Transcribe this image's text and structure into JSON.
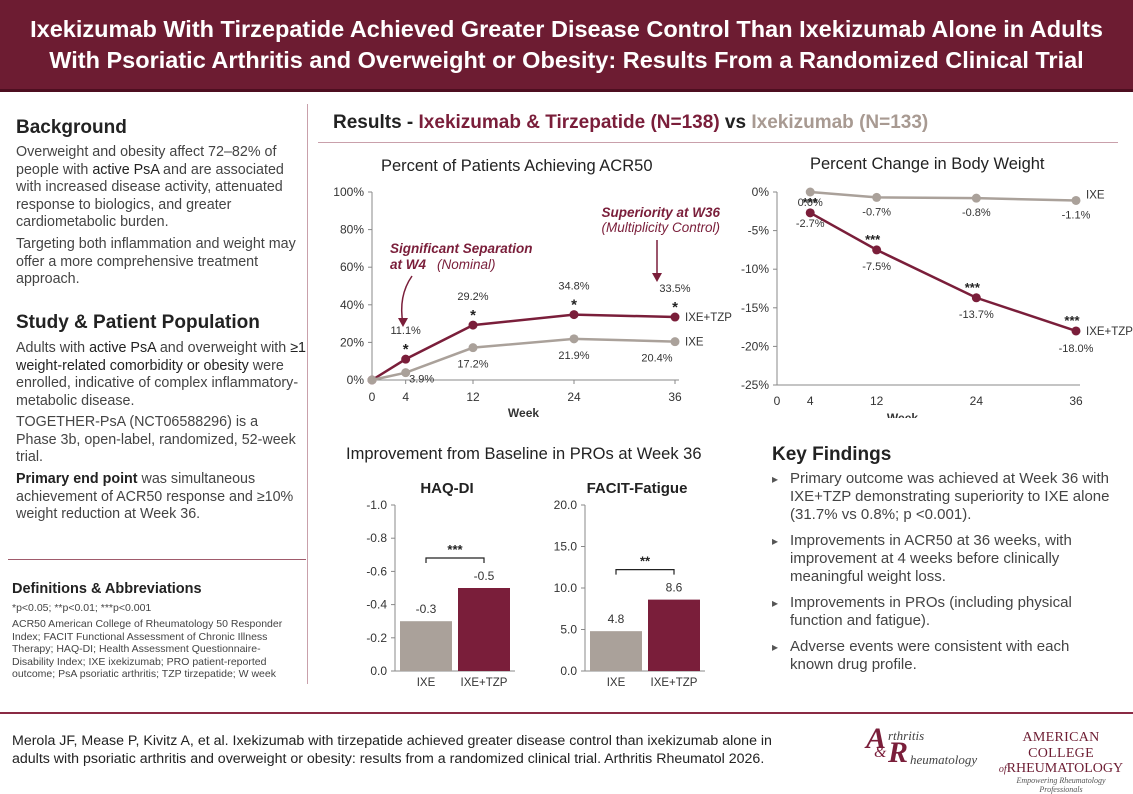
{
  "header": {
    "line1": "Ixekizumab With Tirzepatide Achieved Greater Disease Control Than Ixekizumab Alone in Adults",
    "line2": "With Psoriatic Arthritis and Overweight or Obesity: Results From a Randomized Clinical Trial"
  },
  "background": {
    "heading": "Background",
    "p1_a": "Overweight and obesity affect 72–82% of people with ",
    "p1_bold": "active PsA",
    "p1_b": " and are associated with increased disease activity, attenuated response to biologics, and greater cardiometabolic burden.",
    "p2": "Targeting both inflammation and weight may offer a more comprehensive treatment approach."
  },
  "study": {
    "heading": "Study & Patient Population",
    "p1_a": "Adults with ",
    "p1_b1": "active PsA",
    "p1_c": " and overweight with ",
    "p1_b2": "≥1 weight-related comorbidity or obesity",
    "p1_d": " were enrolled, indicative of complex inflammatory-metabolic disease.",
    "p2": "TOGETHER-PsA (NCT06588296) is a Phase 3b, open-label, randomized, 52-week trial.",
    "p3_bold": "Primary end point",
    "p3_rest": " was simultaneous achievement of ACR50 response and ≥10% weight reduction at Week 36."
  },
  "definitions": {
    "heading": "Definitions & Abbreviations",
    "sig": "*p<0.05; **p<0.01; ***p<0.001",
    "text": "ACR50 American College of Rheumatology 50 Responder Index; FACIT Functional Assessment of Chronic Illness Therapy; HAQ-DI; Health Assessment Questionnaire-Disability Index; IXE ixekizumab; PRO patient-reported outcome; PsA psoriatic arthritis; TZP tirzepatide; W week"
  },
  "results": {
    "label": "Results - ",
    "arm1": "Ixekizumab & Tirzepatide (N=138)",
    "vs": " vs ",
    "arm2": "Ixekizumab (N=133)"
  },
  "colors": {
    "maroon": "#7a1e3a",
    "gray": "#aaa19a"
  },
  "chart_data": [
    {
      "id": "acr50",
      "type": "line",
      "title": "Percent of Patients Achieving ACR50",
      "xlabel": "Week",
      "ylabel": "",
      "x": [
        0,
        4,
        12,
        24,
        36
      ],
      "xticks": [
        "0",
        "4",
        "12",
        "24",
        "36"
      ],
      "yticks": [
        "0%",
        "20%",
        "40%",
        "60%",
        "80%",
        "100%"
      ],
      "ylim": [
        0,
        100
      ],
      "series": [
        {
          "name": "IXE+TZP",
          "values": [
            0,
            11.1,
            29.2,
            34.8,
            33.5
          ],
          "labels": [
            "",
            "11.1%",
            "29.2%",
            "34.8%",
            "33.5%"
          ],
          "sig": [
            "",
            "*",
            "*",
            "*",
            "*"
          ]
        },
        {
          "name": "IXE",
          "values": [
            0,
            3.9,
            17.2,
            21.9,
            20.4
          ],
          "labels": [
            "",
            "3.9%",
            "17.2%",
            "21.9%",
            "20.4%"
          ]
        }
      ],
      "annotations": {
        "sep_bold": "Significant Separation",
        "sep_bold2": "at W4",
        "sep_rest": " (Nominal)",
        "sup_bold": "Superiority at W36",
        "sup_rest": "(Multiplicity Control)"
      }
    },
    {
      "id": "weight",
      "type": "line",
      "title": "Percent Change in Body Weight",
      "xlabel": "Week",
      "x": [
        0,
        4,
        12,
        24,
        36
      ],
      "xticks": [
        "0",
        "4",
        "12",
        "24",
        "36"
      ],
      "yticks": [
        "0%",
        "-5%",
        "-10%",
        "-15%",
        "-20%",
        "-25%"
      ],
      "ylim": [
        -25,
        0
      ],
      "series": [
        {
          "name": "IXE",
          "values": [
            null,
            0.0,
            -0.7,
            -0.8,
            -1.1
          ],
          "labels": [
            "",
            "0.0%",
            "-0.7%",
            "-0.8%",
            "-1.1%"
          ]
        },
        {
          "name": "IXE+TZP",
          "values": [
            null,
            -2.7,
            -7.5,
            -13.7,
            -18.0
          ],
          "labels": [
            "",
            "-2.7%",
            "-7.5%",
            "-13.7%",
            "-18.0%"
          ],
          "sig": [
            "",
            "***",
            "***",
            "***",
            "***"
          ]
        }
      ]
    },
    {
      "id": "haq",
      "type": "bar",
      "title": "HAQ-DI",
      "categories": [
        "IXE",
        "IXE+TZP"
      ],
      "values": [
        -0.3,
        -0.5
      ],
      "labels": [
        "-0.3",
        "-0.5"
      ],
      "yticks": [
        "-1.0",
        "-0.8",
        "-0.6",
        "-0.4",
        "-0.2",
        "0.0"
      ],
      "ylim": [
        -1.0,
        0
      ],
      "sig": "***"
    },
    {
      "id": "facit",
      "type": "bar",
      "title": "FACIT-Fatigue",
      "categories": [
        "IXE",
        "IXE+TZP"
      ],
      "values": [
        4.8,
        8.6
      ],
      "labels": [
        "4.8",
        "8.6"
      ],
      "yticks": [
        "20.0",
        "15.0",
        "10.0",
        "5.0",
        "0.0"
      ],
      "ylim": [
        0,
        20
      ],
      "sig": "**"
    }
  ],
  "pro_title": "Improvement from Baseline in PROs at Week 36",
  "key_findings": {
    "heading": "Key Findings",
    "items": [
      "Primary outcome was achieved at Week 36 with IXE+TZP demonstrating superiority to IXE alone (31.7% vs 0.8%; p <0.001).",
      "Improvements in ACR50 at 36 weeks, with improvement at 4 weeks before clinically meaningful weight loss.",
      "Improvements in PROs (including physical function and fatigue).",
      "Adverse events were consistent with each known drug profile."
    ]
  },
  "footer": {
    "citation": "Merola JF, Mease P, Kivitz A, et al. Ixekizumab with tirzepatide achieved greater disease control than ixekizumab alone in adults with psoriatic arthritis and overweight or obesity: results from a randomized clinical trial. Arthritis Rheumatol 2026.",
    "journal_a": "A",
    "journal_rthritis": "rthritis",
    "journal_amp": "&",
    "journal_r": "R",
    "journal_heumatology": "heumatology",
    "acr_line1": "AMERICAN COLLEGE",
    "acr_of": "of",
    "acr_line2": "RHEUMATOLOGY",
    "acr_tag": "Empowering Rheumatology Professionals"
  }
}
